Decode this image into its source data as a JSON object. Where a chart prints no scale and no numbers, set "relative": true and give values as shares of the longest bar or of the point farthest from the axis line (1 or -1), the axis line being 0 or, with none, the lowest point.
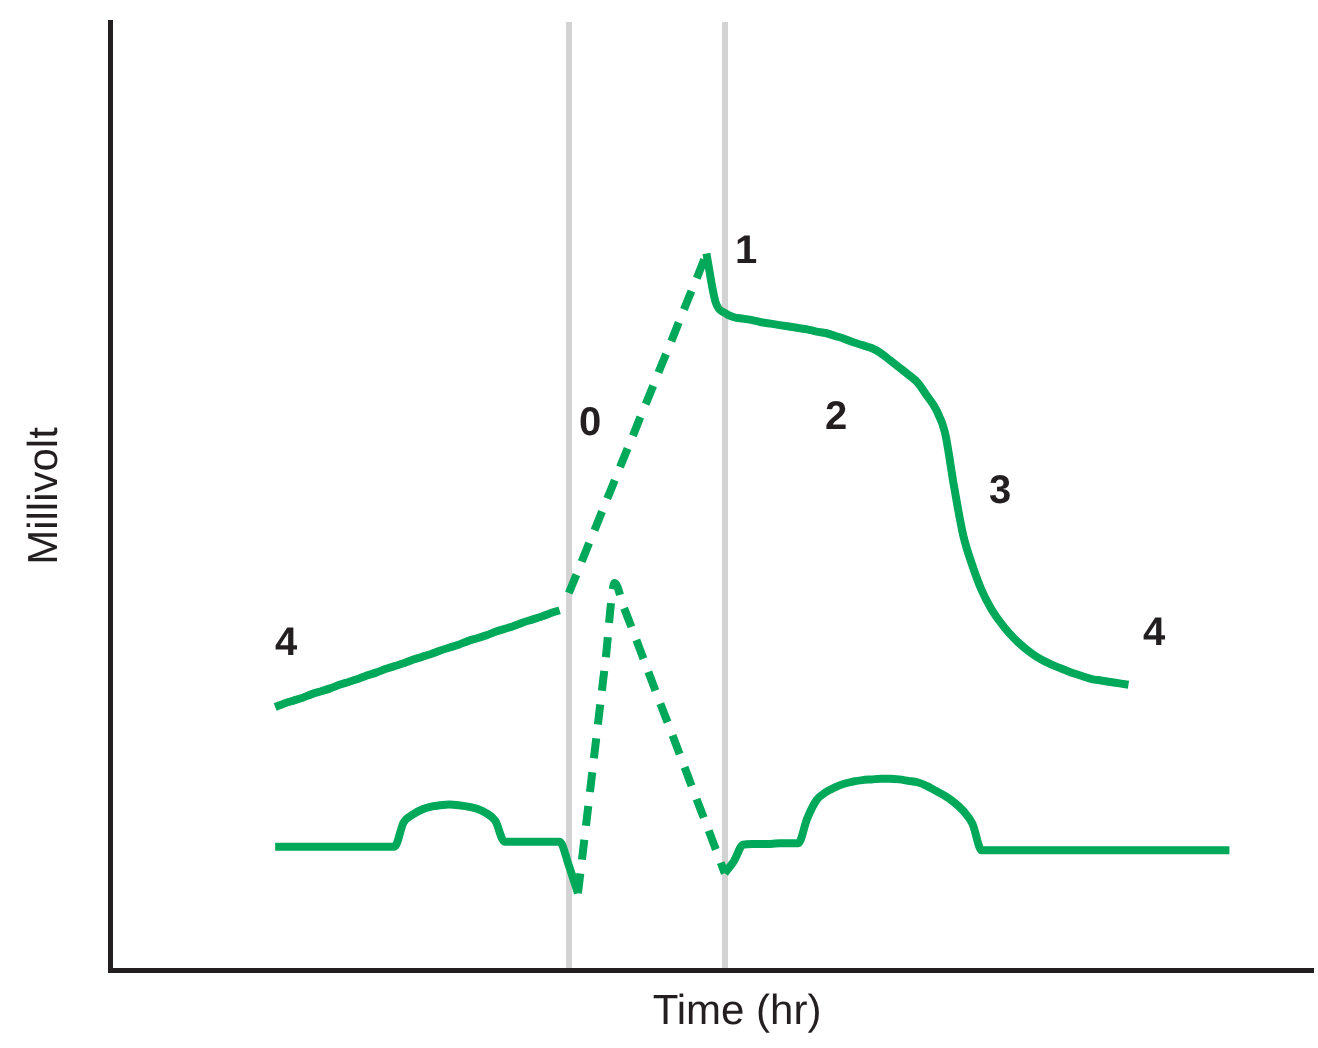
{
  "chart_data": {
    "type": "line",
    "xlabel": "Time (hr)",
    "ylabel": "Millivolt",
    "relative": true,
    "marker": "none",
    "categories": [
      null,
      null,
      null,
      null,
      null,
      null,
      null,
      null,
      null,
      null,
      null,
      null,
      null,
      null,
      null,
      null,
      null,
      null,
      null,
      null,
      null,
      null,
      null,
      null,
      null,
      null,
      null,
      null,
      null,
      null,
      null,
      null,
      null,
      null,
      null,
      null,
      null,
      null,
      null,
      null,
      null,
      null,
      null,
      null,
      null,
      null,
      null,
      null,
      null,
      null,
      null,
      null,
      null,
      null,
      null,
      null,
      null,
      null,
      null,
      null,
      null,
      null,
      null,
      null,
      null,
      null,
      null,
      null,
      null,
      null,
      null,
      null,
      null,
      null,
      null,
      null,
      null,
      null,
      null,
      null,
      null,
      null,
      null,
      null,
      null,
      null,
      null,
      null,
      null,
      null,
      null,
      null,
      null,
      null,
      null,
      null,
      null,
      null,
      null,
      null,
      null,
      null,
      null,
      null,
      null,
      null,
      null,
      null,
      null,
      null,
      null,
      null,
      null,
      null,
      null,
      null,
      null,
      null,
      null,
      null,
      null,
      null,
      null,
      null,
      null,
      null,
      null,
      null,
      null,
      null,
      null,
      null
    ],
    "series": [
      {
        "color": "#00a859",
        "line_style": "solid",
        "values": [
          null,
          null,
          null,
          null,
          null,
          null,
          null,
          null,
          null,
          null,
          null,
          null,
          null,
          null,
          null,
          null,
          null,
          null,
          0.367,
          0.372,
          0.376,
          0.38,
          0.385,
          0.389,
          0.393,
          0.398,
          0.402,
          0.406,
          0.411,
          0.415,
          0.42,
          0.424,
          0.428,
          0.433,
          0.437,
          0.441,
          0.446,
          0.45,
          0.454,
          0.459,
          0.463,
          0.467,
          0.472,
          0.476,
          0.48,
          0.485,
          0.489,
          0.493,
          0.498,
          0.502,
          null,
          null,
          null,
          null,
          null,
          null,
          null,
          null,
          null,
          null,
          null,
          null,
          null,
          null,
          null,
          null,
          null,
          null,
          null,
          null,
          null,
          null,
          null,
          null,
          null,
          null,
          null,
          null,
          null,
          null,
          null,
          null,
          null,
          null,
          null,
          null,
          null,
          null,
          null,
          null,
          null,
          null,
          null,
          null,
          null,
          null,
          null,
          null,
          null,
          null,
          null,
          null,
          null,
          null,
          null,
          null,
          null,
          null,
          null,
          null,
          null,
          null,
          null,
          null,
          null,
          null,
          null,
          null,
          null,
          null,
          null,
          null,
          null,
          null,
          null,
          null,
          null,
          null,
          null,
          null,
          null,
          null
        ]
      },
      {
        "color": "#00a859",
        "line_style": "dashed",
        "values": [
          null,
          null,
          null,
          null,
          null,
          null,
          null,
          null,
          null,
          null,
          null,
          null,
          null,
          null,
          null,
          null,
          null,
          null,
          null,
          null,
          null,
          null,
          null,
          null,
          null,
          null,
          null,
          null,
          null,
          null,
          null,
          null,
          null,
          null,
          null,
          null,
          null,
          null,
          null,
          null,
          null,
          null,
          null,
          null,
          null,
          null,
          null,
          null,
          null,
          null,
          0.526,
          0.557,
          0.589,
          0.62,
          0.652,
          0.683,
          0.715,
          0.746,
          0.778,
          0.809,
          0.841,
          0.872,
          0.904,
          0.936,
          0.967,
          1.0,
          null,
          null,
          null,
          null,
          null,
          null,
          null,
          null,
          null,
          null,
          null,
          null,
          null,
          null,
          null,
          null,
          null,
          null,
          null,
          null,
          null,
          null,
          null,
          null,
          null,
          null,
          null,
          null,
          null,
          null,
          null,
          null,
          null,
          null,
          null,
          null,
          null,
          null,
          null,
          null,
          null,
          null,
          null,
          null,
          null,
          null,
          null,
          null,
          null,
          null,
          null,
          null,
          null,
          null,
          null,
          null,
          null,
          null,
          null,
          null,
          null,
          null,
          null,
          null,
          null,
          null
        ]
      },
      {
        "color": "#00a859",
        "line_style": "solid",
        "values": [
          null,
          null,
          null,
          null,
          null,
          null,
          null,
          null,
          null,
          null,
          null,
          null,
          null,
          null,
          null,
          null,
          null,
          null,
          null,
          null,
          null,
          null,
          null,
          null,
          null,
          null,
          null,
          null,
          null,
          null,
          null,
          null,
          null,
          null,
          null,
          null,
          null,
          null,
          null,
          null,
          null,
          null,
          null,
          null,
          null,
          null,
          null,
          null,
          null,
          null,
          null,
          null,
          null,
          null,
          null,
          null,
          null,
          null,
          null,
          null,
          null,
          null,
          null,
          null,
          null,
          1.0,
          0.932,
          0.917,
          0.911,
          0.909,
          0.907,
          0.904,
          0.902,
          0.9,
          0.898,
          0.896,
          0.894,
          0.891,
          0.889,
          0.885,
          0.881,
          0.876,
          0.872,
          0.868,
          0.861,
          0.851,
          0.841,
          0.831,
          0.82,
          0.802,
          0.783,
          0.75,
          0.674,
          0.606,
          0.564,
          0.53,
          0.505,
          0.486,
          0.47,
          0.457,
          0.446,
          0.437,
          0.43,
          0.424,
          0.419,
          0.414,
          0.41,
          0.406,
          0.404,
          0.402,
          0.4,
          0.398,
          null,
          null,
          null,
          null,
          null,
          null,
          null,
          null,
          null,
          null,
          null,
          null,
          null,
          null,
          null,
          null,
          null,
          null,
          null,
          null
        ]
      },
      {
        "color": "#00a859",
        "line_style": "solid",
        "values": [
          null,
          null,
          null,
          null,
          null,
          null,
          null,
          null,
          null,
          null,
          null,
          null,
          null,
          null,
          null,
          null,
          null,
          null,
          0.172,
          0.172,
          0.172,
          0.172,
          0.172,
          0.172,
          0.172,
          0.172,
          0.172,
          0.172,
          0.172,
          0.172,
          0.172,
          0.172,
          0.206,
          0.217,
          0.224,
          0.228,
          0.23,
          0.231,
          0.23,
          0.228,
          0.225,
          0.219,
          0.208,
          0.179,
          0.179,
          0.179,
          0.179,
          0.179,
          0.179,
          0.179,
          0.146,
          0.107,
          null,
          null,
          null,
          null,
          null,
          null,
          null,
          null,
          null,
          null,
          null,
          null,
          null,
          null,
          null,
          null,
          null,
          null,
          null,
          null,
          null,
          null,
          null,
          null,
          null,
          null,
          null,
          null,
          null,
          null,
          null,
          null,
          null,
          null,
          null,
          null,
          null,
          null,
          null,
          null,
          null,
          null,
          null,
          null,
          null,
          null,
          null,
          null,
          null,
          null,
          null,
          null,
          null,
          null,
          null,
          null,
          null,
          null,
          null,
          null,
          null,
          null,
          null,
          null,
          null,
          null,
          null,
          null,
          null,
          null,
          null,
          null,
          null,
          null,
          null,
          null,
          null,
          null,
          null,
          null
        ]
      },
      {
        "color": "#00a859",
        "line_style": "dashed",
        "values": [
          null,
          null,
          null,
          null,
          null,
          null,
          null,
          null,
          null,
          null,
          null,
          null,
          null,
          null,
          null,
          null,
          null,
          null,
          null,
          null,
          null,
          null,
          null,
          null,
          null,
          null,
          null,
          null,
          null,
          null,
          null,
          null,
          null,
          null,
          null,
          null,
          null,
          null,
          null,
          null,
          null,
          null,
          null,
          null,
          null,
          null,
          null,
          null,
          null,
          null,
          null,
          0.107,
          0.215,
          0.324,
          0.432,
          0.54,
          0.506,
          0.473,
          0.439,
          0.405,
          0.371,
          0.338,
          0.304,
          0.27,
          0.236,
          0.203,
          0.169,
          0.135,
          null,
          null,
          null,
          null,
          null,
          null,
          null,
          null,
          null,
          null,
          null,
          null,
          null,
          null,
          null,
          null,
          null,
          null,
          null,
          null,
          null,
          null,
          null,
          null,
          null,
          null,
          null,
          null,
          null,
          null,
          null,
          null,
          null,
          null,
          null,
          null,
          null,
          null,
          null,
          null,
          null,
          null,
          null,
          null,
          null,
          null,
          null,
          null,
          null,
          null,
          null,
          null,
          null,
          null,
          null,
          null,
          null,
          null,
          null,
          null,
          null,
          null,
          null,
          null
        ]
      },
      {
        "color": "#00a859",
        "line_style": "solid",
        "values": [
          null,
          null,
          null,
          null,
          null,
          null,
          null,
          null,
          null,
          null,
          null,
          null,
          null,
          null,
          null,
          null,
          null,
          null,
          null,
          null,
          null,
          null,
          null,
          null,
          null,
          null,
          null,
          null,
          null,
          null,
          null,
          null,
          null,
          null,
          null,
          null,
          null,
          null,
          null,
          null,
          null,
          null,
          null,
          null,
          null,
          null,
          null,
          null,
          null,
          null,
          null,
          null,
          null,
          null,
          null,
          null,
          null,
          null,
          null,
          null,
          null,
          null,
          null,
          null,
          null,
          null,
          null,
          0.135,
          0.152,
          0.175,
          0.176,
          0.176,
          0.176,
          0.177,
          0.177,
          0.177,
          0.212,
          0.237,
          0.248,
          0.255,
          0.26,
          0.263,
          0.265,
          0.266,
          0.267,
          0.267,
          0.266,
          0.264,
          0.262,
          0.257,
          0.25,
          0.243,
          0.234,
          0.222,
          0.204,
          0.167,
          0.167,
          0.167,
          0.167,
          0.167,
          0.167,
          0.167,
          0.167,
          0.167,
          0.167,
          0.167,
          0.167,
          0.167,
          0.167,
          0.167,
          0.167,
          0.167,
          0.167,
          0.167,
          0.167,
          0.167,
          0.167,
          0.167,
          0.167,
          0.167,
          0.167,
          0.167,
          0.167,
          null,
          null,
          null,
          null,
          null,
          null,
          null,
          null,
          null
        ]
      }
    ],
    "annotations": [
      "0",
      "1",
      "2",
      "3",
      "4",
      "4"
    ]
  }
}
